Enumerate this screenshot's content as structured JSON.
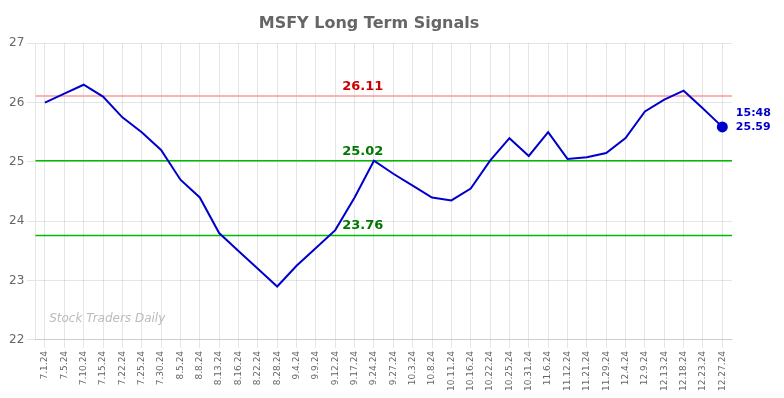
{
  "chart_data": {
    "type": "line",
    "title": "MSFY Long Term Signals",
    "categories": [
      "7.1.24",
      "7.5.24",
      "7.10.24",
      "7.15.24",
      "7.22.24",
      "7.25.24",
      "7.30.24",
      "8.5.24",
      "8.8.24",
      "8.13.24",
      "8.16.24",
      "8.22.24",
      "8.28.24",
      "9.4.24",
      "9.9.24",
      "9.12.24",
      "9.17.24",
      "9.24.24",
      "9.27.24",
      "10.3.24",
      "10.8.24",
      "10.11.24",
      "10.16.24",
      "10.22.24",
      "10.25.24",
      "10.31.24",
      "11.6.24",
      "11.12.24",
      "11.21.24",
      "11.29.24",
      "12.4.24",
      "12.9.24",
      "12.13.24",
      "12.18.24",
      "12.23.24",
      "12.27.24"
    ],
    "values": [
      26.0,
      26.15,
      26.3,
      26.1,
      25.75,
      25.5,
      25.2,
      24.7,
      24.4,
      23.8,
      23.5,
      23.2,
      22.9,
      23.25,
      23.55,
      23.85,
      24.4,
      25.02,
      24.8,
      24.6,
      24.4,
      24.35,
      24.55,
      25.02,
      25.4,
      25.1,
      25.5,
      25.05,
      25.08,
      25.15,
      25.4,
      25.85,
      26.05,
      26.2,
      25.9,
      25.59
    ],
    "color": "#0000cc",
    "ylim": [
      22,
      27
    ],
    "yticks": [
      22,
      23,
      24,
      25,
      26,
      27
    ],
    "grid": true,
    "hlines": [
      {
        "value": 26.11,
        "color": "#ff9999",
        "label": "26.11",
        "label_color": "#cc0000"
      },
      {
        "value": 25.02,
        "color": "#00bb00",
        "label": "25.02",
        "label_color": "#007700"
      },
      {
        "value": 23.76,
        "color": "#00bb00",
        "label": "23.76",
        "label_color": "#007700"
      }
    ],
    "end_point": {
      "marker": "circle",
      "color": "#0000cc",
      "labels": [
        {
          "text": "15:48",
          "color": "#0000cc"
        },
        {
          "text": "25.59",
          "color": "#0000cc"
        }
      ]
    },
    "watermark": {
      "text": "Stock Traders Daily",
      "color": "#bbbbbb"
    }
  }
}
